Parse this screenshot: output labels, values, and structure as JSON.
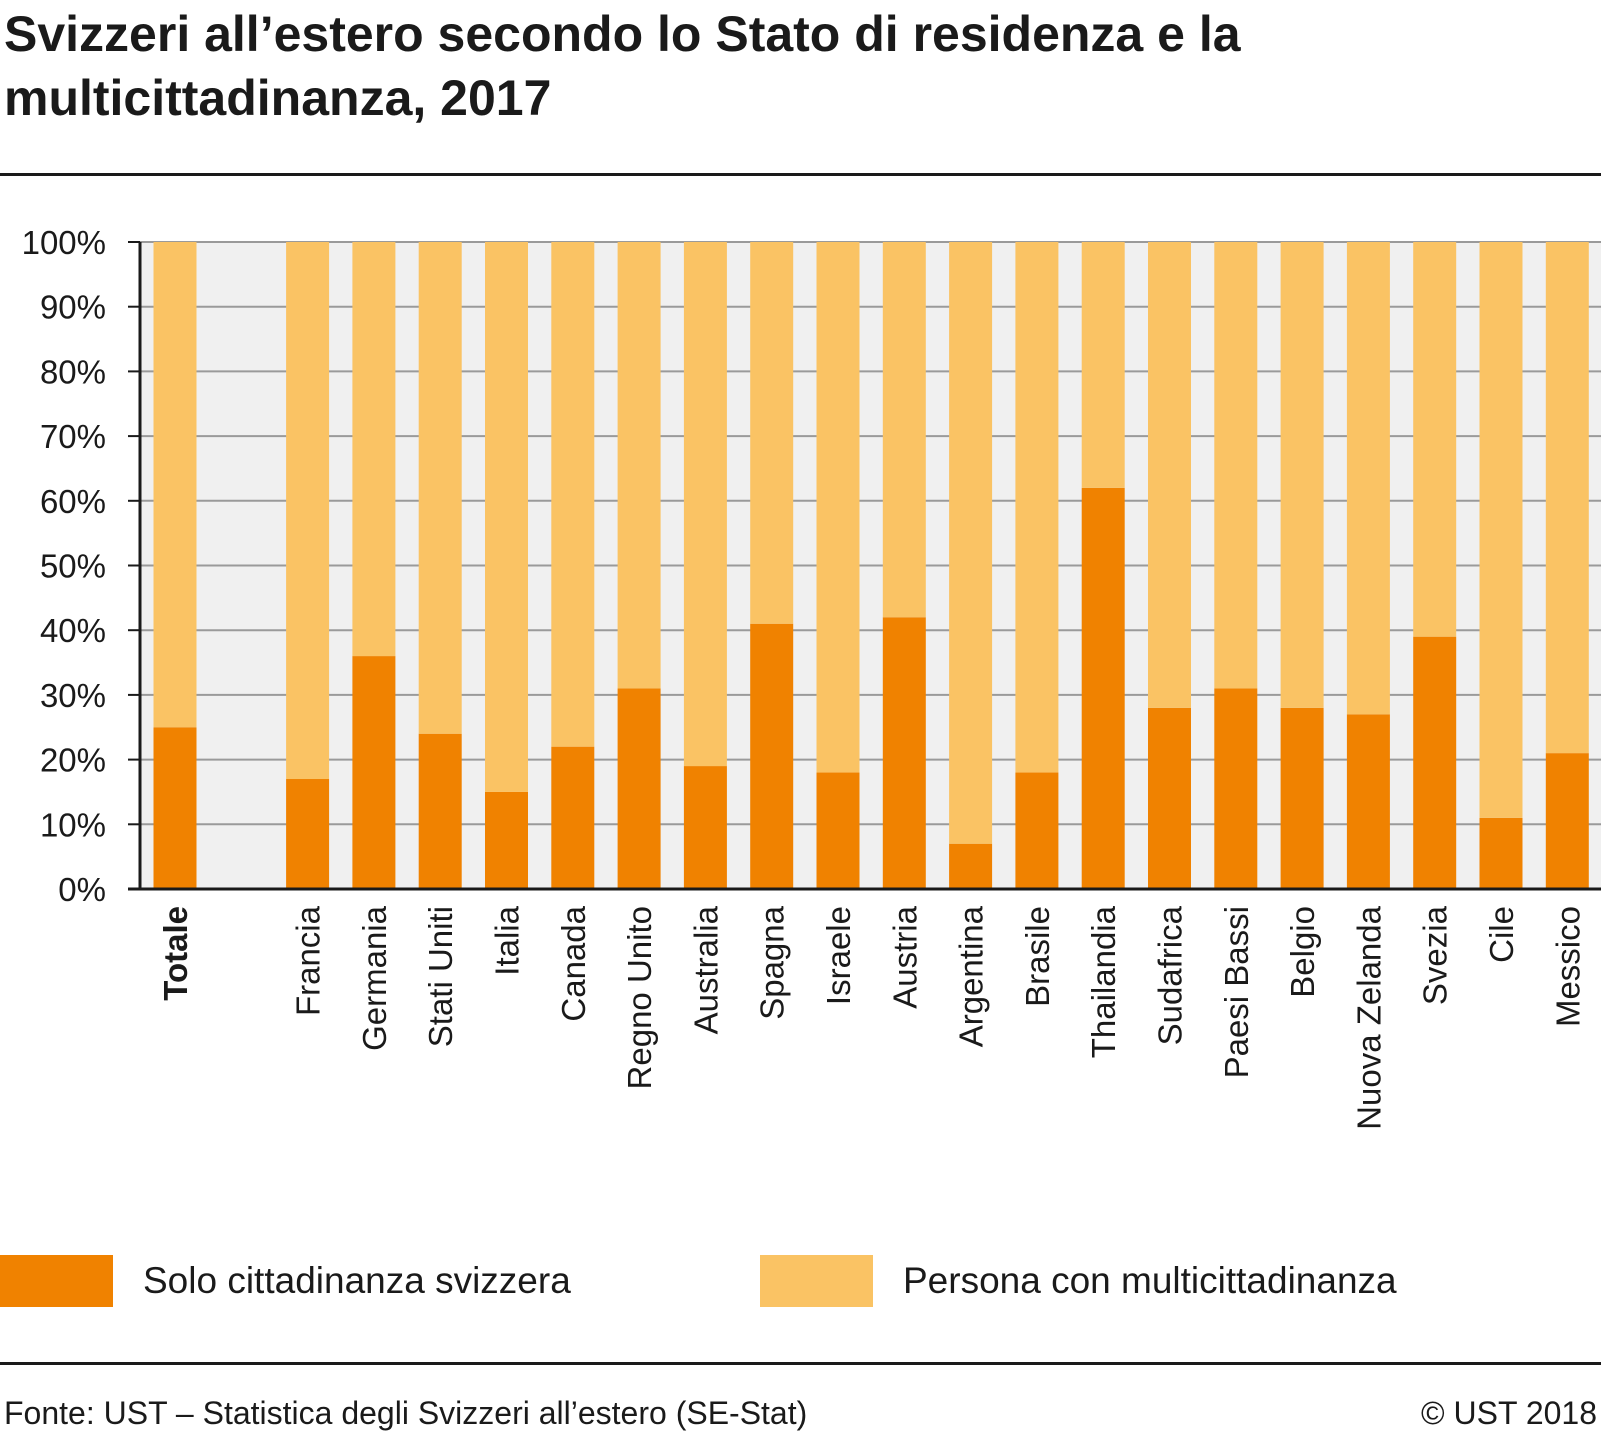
{
  "title": "Svizzeri all’estero secondo lo Stato di residenza e la multicittadinanza, 2017",
  "source": "Fonte: UST – Statistica degli Svizzeri all’estero (SE-Stat)",
  "copyright": "© UST 2018",
  "colors": {
    "solo": "#f08200",
    "multi": "#fac364",
    "plot_bg": "#f0f0f0",
    "grid": "#9a9a9a",
    "axis": "#1a1a1a"
  },
  "chart_data": {
    "type": "bar",
    "stacked": true,
    "categories": [
      "Totale",
      "Francia",
      "Germania",
      "Stati Uniti",
      "Italia",
      "Canada",
      "Regno Unito",
      "Australia",
      "Spagna",
      "Israele",
      "Austria",
      "Argentina",
      "Brasile",
      "Thailandia",
      "Sudafrica",
      "Paesi Bassi",
      "Belgio",
      "Nuova Zelanda",
      "Svezia",
      "Cile",
      "Messico"
    ],
    "bold_category": "Totale",
    "series": [
      {
        "name": "Solo cittadinanza svizzera",
        "values": [
          25,
          17,
          36,
          24,
          15,
          22,
          31,
          19,
          41,
          18,
          42,
          7,
          18,
          62,
          28,
          31,
          28,
          27,
          39,
          11,
          21
        ]
      },
      {
        "name": "Persona con multicittadinanza",
        "values": [
          75,
          83,
          64,
          76,
          85,
          78,
          69,
          81,
          59,
          82,
          58,
          93,
          82,
          38,
          72,
          69,
          72,
          73,
          61,
          89,
          79
        ]
      }
    ],
    "yticks": [
      "0%",
      "10%",
      "20%",
      "30%",
      "40%",
      "50%",
      "60%",
      "70%",
      "80%",
      "90%",
      "100%"
    ],
    "ylim": [
      0,
      100
    ],
    "grid": true,
    "legend_position": "bottom"
  }
}
